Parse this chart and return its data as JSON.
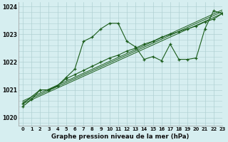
{
  "title": "Graphe pression niveau de la mer (hPa)",
  "bg_color": "#d6eef0",
  "grid_color": "#b0d0d2",
  "line_color": "#1a5c1a",
  "xlim": [
    -0.5,
    23
  ],
  "ylim": [
    1019.7,
    1024.15
  ],
  "yticks": [
    1020,
    1021,
    1022,
    1023,
    1024
  ],
  "xtick_labels": [
    "0",
    "1",
    "2",
    "3",
    "4",
    "5",
    "6",
    "7",
    "8",
    "9",
    "10",
    "11",
    "12",
    "13",
    "14",
    "15",
    "16",
    "17",
    "18",
    "19",
    "20",
    "21",
    "22",
    "23"
  ],
  "series1_x": [
    0,
    1,
    2,
    3,
    4,
    5,
    6,
    7,
    8,
    9,
    10,
    11,
    12,
    13,
    14,
    15,
    16,
    17,
    18,
    19,
    20,
    21,
    22,
    23
  ],
  "series1_y": [
    1020.4,
    1020.65,
    1021.0,
    1021.0,
    1021.15,
    1021.45,
    1021.75,
    1022.75,
    1022.9,
    1023.2,
    1023.4,
    1023.4,
    1022.75,
    1022.55,
    1022.1,
    1022.2,
    1022.05,
    1022.65,
    1022.1,
    1022.1,
    1022.15,
    1023.2,
    1023.85,
    1023.75
  ],
  "series2_x": [
    0,
    2,
    3,
    4,
    5,
    6,
    7,
    8,
    9,
    10,
    11,
    12,
    13,
    14,
    15,
    16,
    17,
    18,
    19,
    20,
    21,
    22,
    23
  ],
  "series2_y": [
    1020.5,
    1021.0,
    1021.0,
    1021.15,
    1021.4,
    1021.55,
    1021.7,
    1021.85,
    1022.0,
    1022.15,
    1022.25,
    1022.4,
    1022.5,
    1022.65,
    1022.75,
    1022.9,
    1023.0,
    1023.1,
    1023.2,
    1023.3,
    1023.45,
    1023.55,
    1023.75
  ],
  "trend1_x": [
    0,
    23
  ],
  "trend1_y": [
    1020.5,
    1023.75
  ],
  "trend2_x": [
    0,
    23
  ],
  "trend2_y": [
    1020.55,
    1023.82
  ],
  "trend3_x": [
    0,
    23
  ],
  "trend3_y": [
    1020.6,
    1023.88
  ]
}
